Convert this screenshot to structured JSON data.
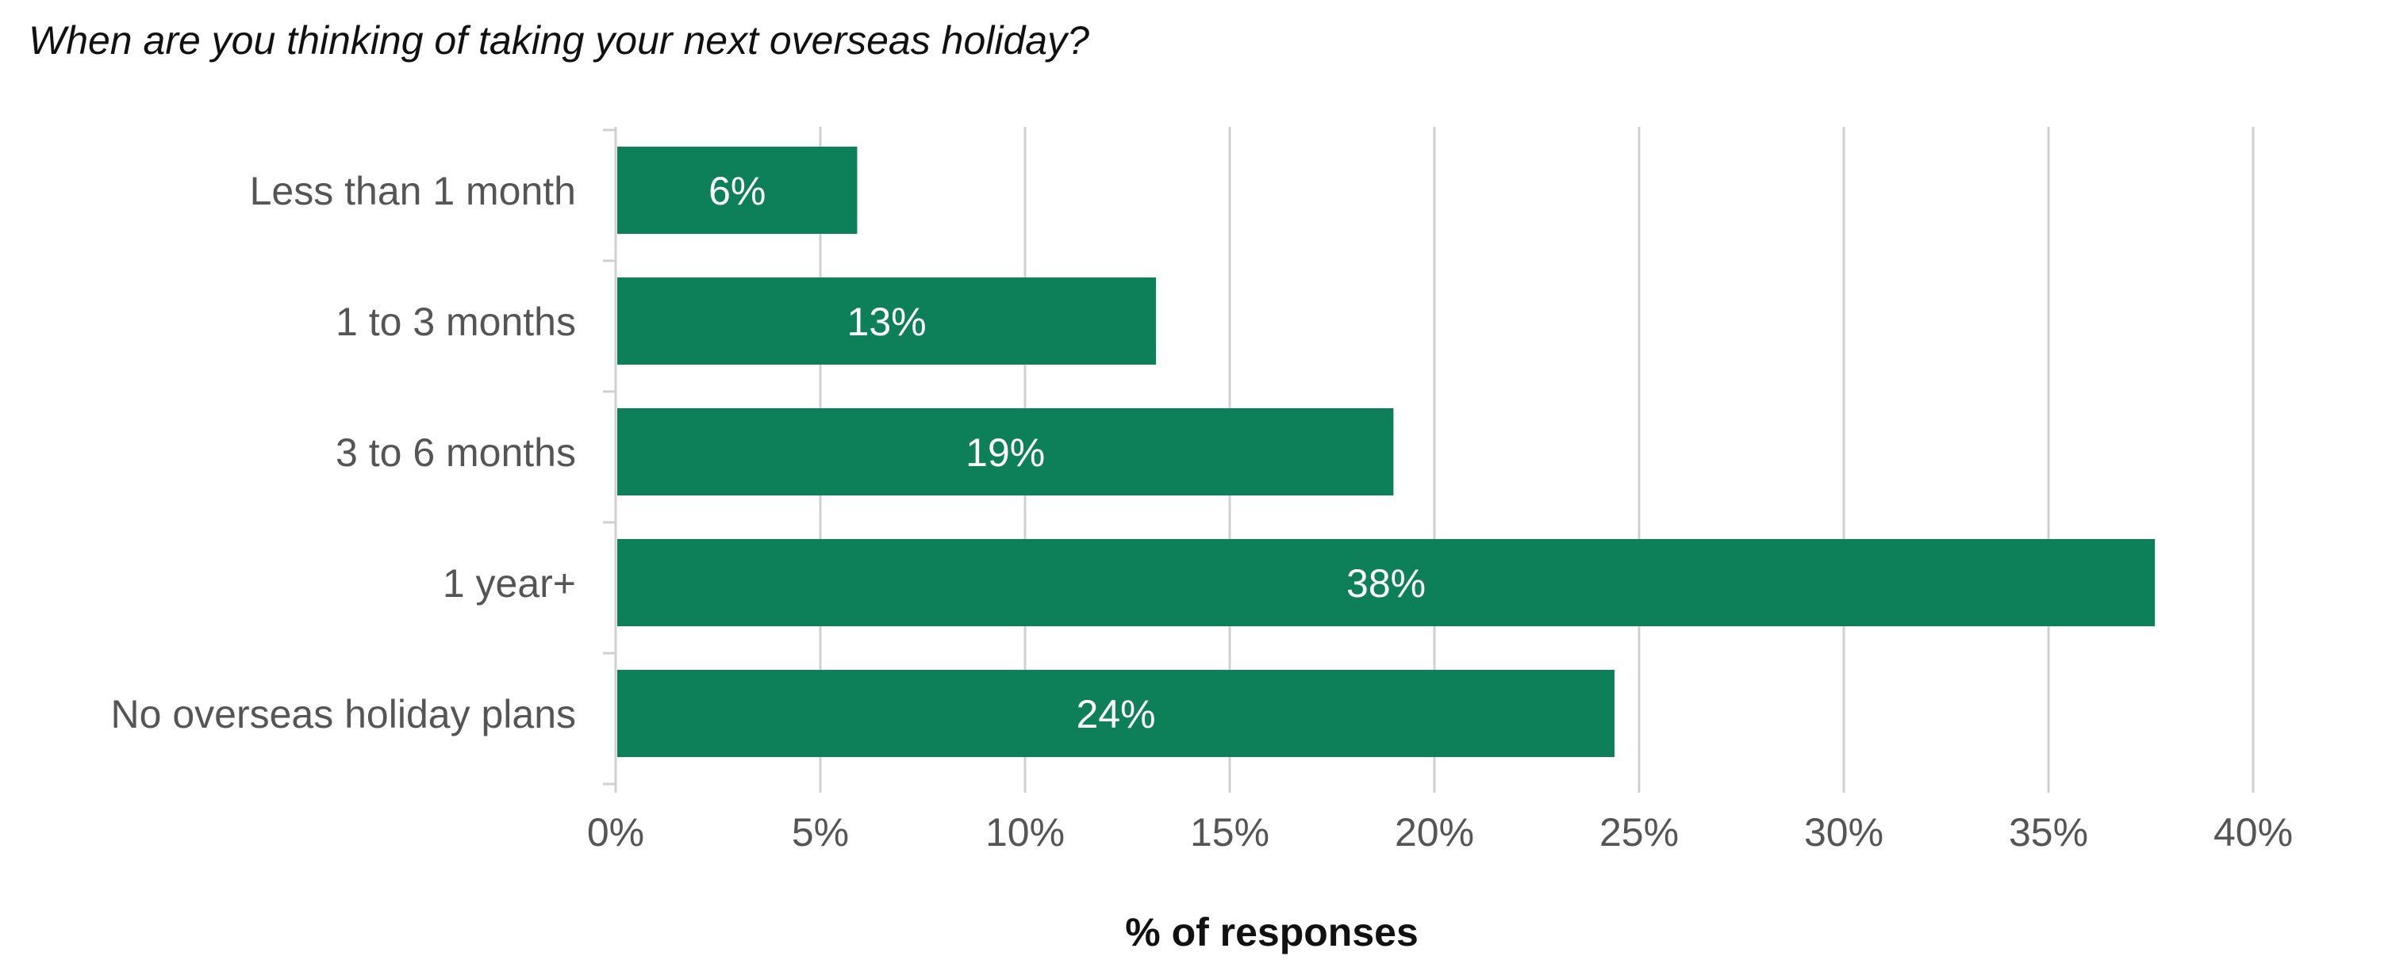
{
  "chart_data": {
    "type": "bar",
    "orientation": "horizontal",
    "title": "When are you thinking of taking your next overseas holiday?",
    "xlabel": "% of responses",
    "ylabel": "",
    "categories": [
      "Less than 1 month",
      "1 to 3 months",
      "3 to 6 months",
      "1 year+",
      "No overseas holiday plans"
    ],
    "values": [
      5.9,
      13.2,
      19.0,
      37.6,
      24.4
    ],
    "data_labels": [
      "6%",
      "13%",
      "19%",
      "38%",
      "24%"
    ],
    "xlim": [
      0,
      40
    ],
    "ticks": [
      0,
      5,
      10,
      15,
      20,
      25,
      30,
      35,
      40
    ],
    "tick_labels": [
      "0%",
      "5%",
      "10%",
      "15%",
      "20%",
      "25%",
      "30%",
      "35%",
      "40%"
    ],
    "grid": true,
    "legend": "none",
    "bar_color": "#0e8059",
    "data_label_color": "#ffffff"
  }
}
